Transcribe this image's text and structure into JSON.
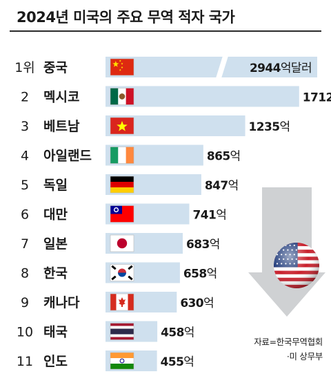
{
  "title": "2024년 미국의 주요 무역 적자 국가",
  "source": {
    "line1": "자료=한국무역협회",
    "line2": "·미 상무부"
  },
  "colors": {
    "bar": "#cfe0ee",
    "text": "#1a1a1a",
    "rule": "#2b2b2b",
    "arrow": "#cfd1d3"
  },
  "decorations": {
    "arrow": "down-arrow-graphic",
    "globe": "us-flag-globe-icon"
  },
  "chart_data": {
    "type": "bar",
    "orientation": "horizontal",
    "title": "2024년 미국의 주요 무역 적자 국가",
    "unit": "억달러",
    "value_suffix": "억",
    "first_value_suffix": "억달러",
    "axis_broken_first_bar": true,
    "grid": false,
    "ranks": [
      "1위",
      "2",
      "3",
      "4",
      "5",
      "6",
      "7",
      "8",
      "9",
      "10",
      "11"
    ],
    "categories": [
      "중국",
      "멕시코",
      "베트남",
      "아일랜드",
      "독일",
      "대만",
      "일본",
      "한국",
      "캐나다",
      "태국",
      "인도"
    ],
    "flags": [
      "china-flag-icon",
      "mexico-flag-icon",
      "vietnam-flag-icon",
      "ireland-flag-icon",
      "germany-flag-icon",
      "taiwan-flag-icon",
      "japan-flag-icon",
      "south-korea-flag-icon",
      "canada-flag-icon",
      "thailand-flag-icon",
      "india-flag-icon"
    ],
    "values": [
      2944,
      1712,
      1235,
      865,
      847,
      741,
      683,
      658,
      630,
      458,
      455
    ]
  }
}
